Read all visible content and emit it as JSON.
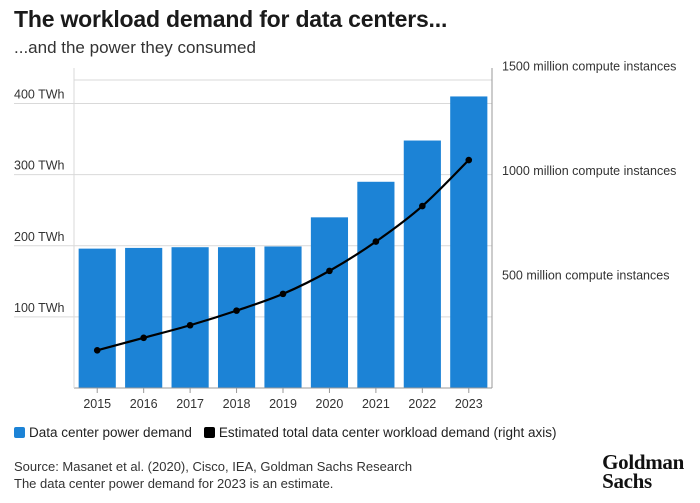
{
  "header": {
    "title": "The workload demand for data centers...",
    "subtitle": "...and the power they consumed"
  },
  "colors": {
    "bar": "#1c83d6",
    "line": "#000000",
    "grid": "#d9d9d9",
    "axis": "#999999"
  },
  "chart_data": {
    "type": "bar",
    "title": "The workload demand for data centers...",
    "subtitle": "...and the power they consumed",
    "categories": [
      "2015",
      "2016",
      "2017",
      "2018",
      "2019",
      "2020",
      "2021",
      "2022",
      "2023"
    ],
    "left_axis": {
      "unit": "TWh",
      "ylim": [
        0,
        450
      ],
      "ticks": [
        100,
        200,
        300,
        400
      ],
      "tick_labels": [
        "100 TWh",
        "200 TWh",
        "300 TWh",
        "400 TWh"
      ]
    },
    "right_axis": {
      "unit": "million compute instances",
      "ylim": [
        0,
        1530
      ],
      "ticks": [
        500,
        1000,
        1500
      ],
      "tick_labels": [
        "500 million compute instances",
        "1000 million compute instances",
        "1500 million compute instances"
      ]
    },
    "series": [
      {
        "name": "Data center power demand",
        "type": "bar",
        "axis": "left",
        "values": [
          196,
          197,
          198,
          198,
          199,
          240,
          290,
          348,
          410
        ]
      },
      {
        "name": "Estimated total data center workload demand (right axis)",
        "type": "line",
        "axis": "right",
        "values": [
          180,
          240,
          300,
          370,
          450,
          560,
          700,
          870,
          1090
        ]
      }
    ],
    "grid": true,
    "legend": "bottom"
  },
  "legend": {
    "bar_label": "Data center power demand",
    "line_label": "Estimated total data center workload demand (right axis)"
  },
  "footer": {
    "source": "Source: Masanet et al. (2020), Cisco, IEA, Goldman Sachs Research",
    "note": "The data center power demand for 2023 is an estimate.",
    "logo_line1": "Goldman",
    "logo_line2": "Sachs"
  }
}
